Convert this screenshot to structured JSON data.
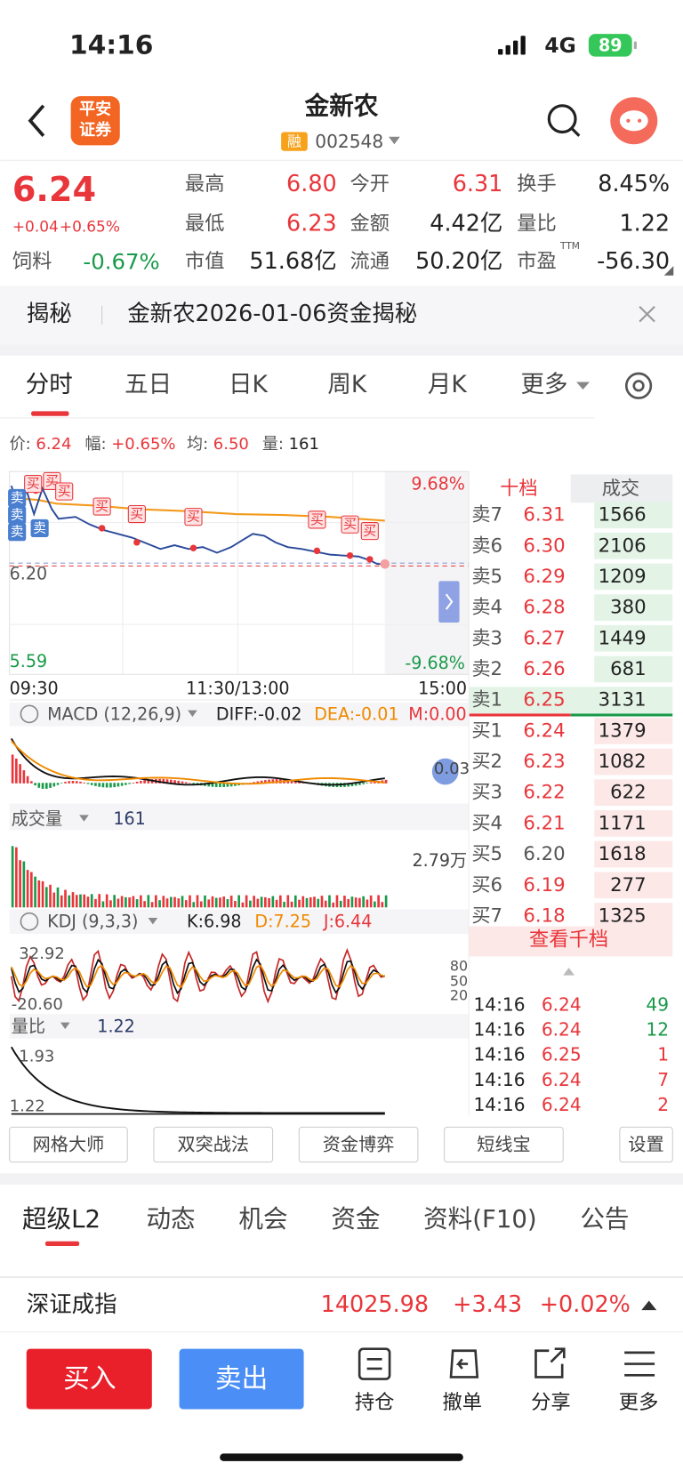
{
  "status": {
    "time": "14:16",
    "network": "4G",
    "battery": "89"
  },
  "header": {
    "logo": [
      "平安",
      "证券"
    ],
    "name": "金新农",
    "tag": "融",
    "code": "002548"
  },
  "quote": {
    "price": "6.24",
    "change": "+0.04",
    "change_pct": "+0.65%",
    "sector": "饲料",
    "sector_change": "-0.67%",
    "items": [
      {
        "label": "最高",
        "value": "6.80",
        "color": "#e8363b"
      },
      {
        "label": "今开",
        "value": "6.31",
        "color": "#e8363b"
      },
      {
        "label": "换手",
        "value": "8.45%",
        "color": "#222222"
      },
      {
        "label": "最低",
        "value": "6.23",
        "color": "#e8363b"
      },
      {
        "label": "金额",
        "value": "4.42亿",
        "color": "#222222"
      },
      {
        "label": "量比",
        "value": "1.22",
        "color": "#222222"
      },
      {
        "label": "市值",
        "value": "51.68亿",
        "color": "#222222"
      },
      {
        "label": "流通",
        "value": "50.20亿",
        "color": "#222222"
      },
      {
        "label": "市盈",
        "note": "TTM",
        "value": "-56.30",
        "color": "#222222"
      }
    ]
  },
  "reveal": {
    "label": "揭秘",
    "text": "金新农2026-01-06资金揭秘"
  },
  "tabs": [
    "分时",
    "五日",
    "日K",
    "周K",
    "月K",
    "更多"
  ],
  "info": [
    {
      "label": "价:",
      "value": "6.24"
    },
    {
      "label": "幅:",
      "value": "+0.65%"
    },
    {
      "label": "均:",
      "value": "6.50"
    },
    {
      "label": "量:",
      "value": "161"
    }
  ],
  "intraday": {
    "upper_pct": "9.68%",
    "lower_pct": "-9.68%",
    "prev_close": "6.20",
    "low": "5.59",
    "times": [
      "09:30",
      "11:30/13:00",
      "15:00"
    ],
    "markers": [
      "买",
      "买",
      "买",
      "买",
      "买",
      "买",
      "买",
      "买",
      "买",
      "卖",
      "卖",
      "卖",
      "卖"
    ]
  },
  "macd": {
    "title": "MACD (12,26,9)",
    "diff": "DIFF:-0.02",
    "dea": "DEA:-0.01",
    "m": "M:0.00",
    "side": "0.03"
  },
  "volume": {
    "title": "成交量",
    "value": "161",
    "max": "2.79万"
  },
  "kdj": {
    "title": "KDJ (9,3,3)",
    "k": "K:6.98",
    "d": "D:7.25",
    "j": "J:6.44",
    "high": "32.92",
    "low": "-20.60",
    "levels": [
      "80",
      "50",
      "20"
    ]
  },
  "ratio": {
    "title": "量比",
    "value": "1.22",
    "high": "1.93",
    "low": "1.22"
  },
  "order_book": {
    "tabs": [
      "十档",
      "成交"
    ],
    "rows": [
      {
        "label": "卖7",
        "price": "6.31",
        "volume": "1566"
      },
      {
        "label": "卖6",
        "price": "6.30",
        "volume": "2106"
      },
      {
        "label": "卖5",
        "price": "6.29",
        "volume": "1209"
      },
      {
        "label": "卖4",
        "price": "6.28",
        "volume": "380"
      },
      {
        "label": "卖3",
        "price": "6.27",
        "volume": "1449"
      },
      {
        "label": "卖2",
        "price": "6.26",
        "volume": "681"
      },
      {
        "label": "卖1",
        "price": "6.25",
        "volume": "3131"
      },
      {
        "label": "买1",
        "price": "6.24",
        "volume": "1379"
      },
      {
        "label": "买2",
        "price": "6.23",
        "volume": "1082"
      },
      {
        "label": "买3",
        "price": "6.22",
        "volume": "622"
      },
      {
        "label": "买4",
        "price": "6.21",
        "volume": "1171"
      },
      {
        "label": "买5",
        "price": "6.20",
        "volume": "1618"
      },
      {
        "label": "买6",
        "price": "6.19",
        "volume": "277"
      },
      {
        "label": "买7",
        "price": "6.18",
        "volume": "1325"
      }
    ],
    "more": "查看千档"
  },
  "trades": [
    {
      "time": "14:16",
      "price": "6.24",
      "volume": "49"
    },
    {
      "time": "14:16",
      "price": "6.24",
      "volume": "12"
    },
    {
      "time": "14:16",
      "price": "6.25",
      "volume": "1"
    },
    {
      "time": "14:16",
      "price": "6.24",
      "volume": "7"
    },
    {
      "time": "14:16",
      "price": "6.24",
      "volume": "2"
    }
  ],
  "tools": [
    "网格大师",
    "双突战法",
    "资金博弈",
    "短线宝",
    "设置"
  ],
  "bottom_tabs": [
    "超级L2",
    "动态",
    "机会",
    "资金",
    "资料(F10)",
    "公告"
  ],
  "index": {
    "name": "深证成指",
    "value": "14025.98",
    "change": "+3.43",
    "change_pct": "+0.02%"
  },
  "actions": {
    "buy": "买入",
    "sell": "卖出",
    "items": [
      "持仓",
      "撤单",
      "分享",
      "更多"
    ]
  }
}
